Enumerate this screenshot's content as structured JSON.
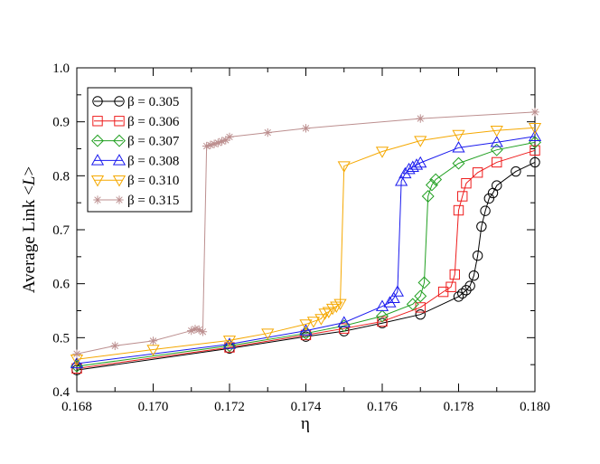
{
  "chart_data": {
    "type": "line",
    "title": "",
    "xlabel": "η",
    "ylabel_prefix": "Average Link <",
    "ylabel_var": "L",
    "ylabel_suffix": ">",
    "xlim": [
      0.168,
      0.18
    ],
    "ylim": [
      0.4,
      1.0
    ],
    "xticks": [
      0.168,
      0.17,
      0.172,
      0.174,
      0.176,
      0.178,
      0.18
    ],
    "xtick_labels": [
      "0.168",
      "0.170",
      "0.172",
      "0.174",
      "0.176",
      "0.178",
      "0.180"
    ],
    "yticks": [
      0.4,
      0.5,
      0.6,
      0.7,
      0.8,
      0.9,
      1.0
    ],
    "ytick_labels": [
      "0.4",
      "0.5",
      "0.6",
      "0.7",
      "0.8",
      "0.9",
      "1.0"
    ],
    "grid": false,
    "legend_position": "top-left",
    "series": [
      {
        "name": "β = 0.305",
        "color": "#000000",
        "marker": "circle",
        "x": [
          0.168,
          0.172,
          0.174,
          0.175,
          0.176,
          0.177,
          0.178,
          0.1781,
          0.1782,
          0.1783,
          0.1784,
          0.1785,
          0.1786,
          0.1787,
          0.1788,
          0.1789,
          0.179,
          0.1795,
          0.18
        ],
        "y": [
          0.44,
          0.48,
          0.502,
          0.512,
          0.527,
          0.543,
          0.576,
          0.582,
          0.588,
          0.596,
          0.615,
          0.652,
          0.706,
          0.735,
          0.758,
          0.768,
          0.782,
          0.808,
          0.825
        ]
      },
      {
        "name": "β = 0.306",
        "color": "#ee1c1c",
        "marker": "square",
        "x": [
          0.168,
          0.172,
          0.174,
          0.175,
          0.176,
          0.177,
          0.1776,
          0.1778,
          0.1779,
          0.178,
          0.1781,
          0.1782,
          0.1785,
          0.179,
          0.18
        ],
        "y": [
          0.443,
          0.482,
          0.505,
          0.517,
          0.53,
          0.556,
          0.585,
          0.594,
          0.617,
          0.736,
          0.762,
          0.786,
          0.806,
          0.825,
          0.847
        ]
      },
      {
        "name": "β = 0.307",
        "color": "#22a022",
        "marker": "diamond",
        "x": [
          0.168,
          0.172,
          0.174,
          0.175,
          0.176,
          0.1768,
          0.177,
          0.1771,
          0.1772,
          0.1773,
          0.1774,
          0.178,
          0.179,
          0.18
        ],
        "y": [
          0.447,
          0.485,
          0.508,
          0.522,
          0.54,
          0.562,
          0.577,
          0.602,
          0.762,
          0.783,
          0.793,
          0.823,
          0.848,
          0.862
        ]
      },
      {
        "name": "β = 0.308",
        "color": "#1a1aee",
        "marker": "triangle-up",
        "x": [
          0.168,
          0.172,
          0.174,
          0.175,
          0.176,
          0.1762,
          0.1763,
          0.1764,
          0.1765,
          0.1766,
          0.1767,
          0.1768,
          0.1769,
          0.177,
          0.178,
          0.179,
          0.18
        ],
        "y": [
          0.452,
          0.488,
          0.513,
          0.528,
          0.558,
          0.565,
          0.573,
          0.585,
          0.79,
          0.804,
          0.812,
          0.816,
          0.82,
          0.824,
          0.852,
          0.862,
          0.873
        ]
      },
      {
        "name": "β = 0.310",
        "color": "#f5a800",
        "marker": "triangle-down",
        "x": [
          0.168,
          0.17,
          0.172,
          0.173,
          0.174,
          0.1742,
          0.1744,
          0.1745,
          0.1746,
          0.1747,
          0.1748,
          0.1749,
          0.175,
          0.176,
          0.177,
          0.178,
          0.179,
          0.18
        ],
        "y": [
          0.46,
          0.478,
          0.495,
          0.508,
          0.525,
          0.53,
          0.535,
          0.545,
          0.548,
          0.554,
          0.558,
          0.563,
          0.818,
          0.845,
          0.865,
          0.876,
          0.884,
          0.889
        ]
      },
      {
        "name": "β = 0.315",
        "color": "#bc8f8f",
        "marker": "asterisk",
        "x": [
          0.168,
          0.169,
          0.17,
          0.171,
          0.1711,
          0.1712,
          0.1713,
          0.1714,
          0.1715,
          0.1716,
          0.1717,
          0.1718,
          0.1719,
          0.172,
          0.173,
          0.174,
          0.177,
          0.18
        ],
        "y": [
          0.47,
          0.485,
          0.494,
          0.513,
          0.516,
          0.515,
          0.511,
          0.855,
          0.857,
          0.859,
          0.861,
          0.864,
          0.866,
          0.872,
          0.88,
          0.888,
          0.906,
          0.918
        ]
      }
    ]
  }
}
